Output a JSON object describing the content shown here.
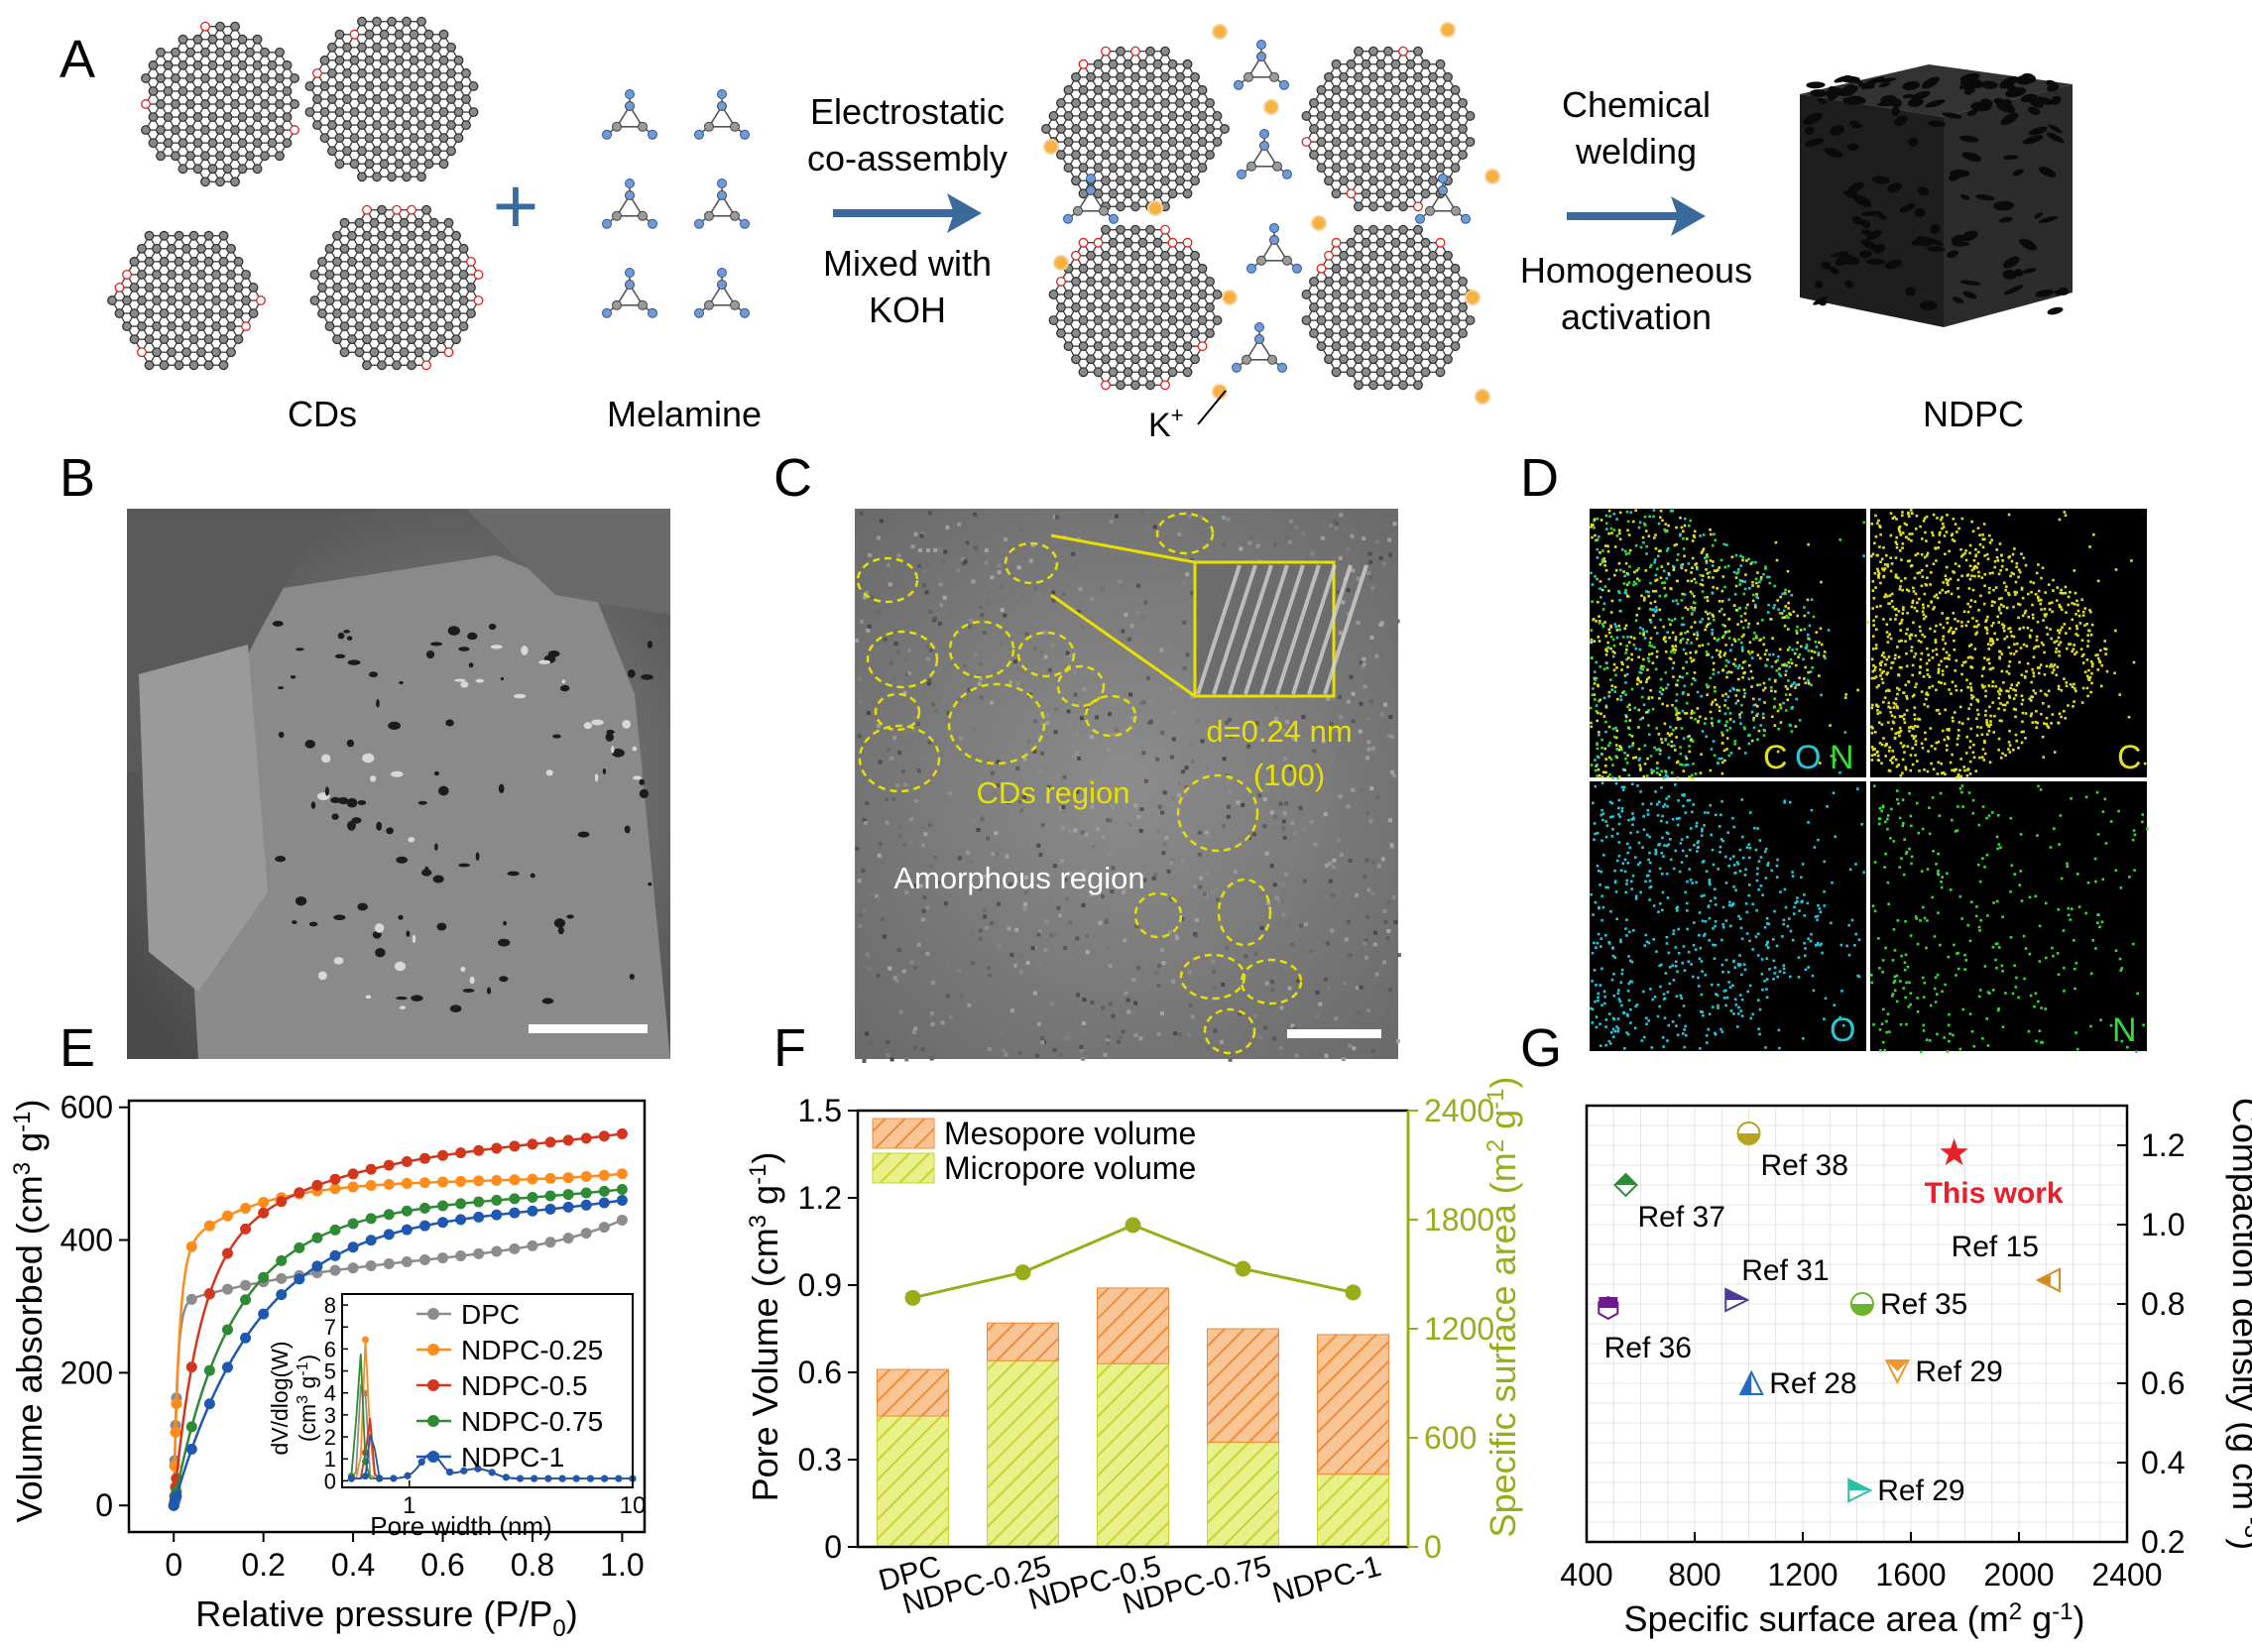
{
  "panel_labels": [
    "A",
    "B",
    "C",
    "D",
    "E",
    "F",
    "G"
  ],
  "schematic": {
    "cds_label": "CDs",
    "melamine_label": "Melamine",
    "plus": "+",
    "step1_top_line1": "Electrostatic",
    "step1_top_line2": "co-assembly",
    "step1_bottom_line1": "Mixed with",
    "step1_bottom_line2": "KOH",
    "k_ion_label": "K",
    "k_ion_sup": "+",
    "step2_top_line1": "Chemical",
    "step2_top_line2": "welding",
    "step2_bottom_line1": "Homogeneous",
    "step2_bottom_line2": "activation",
    "product_label": "NDPC"
  },
  "tem": {
    "d_spacing": "d=0.24 nm",
    "plane": "(100)",
    "cds_region": "CDs region",
    "amorphous_region": "Amorphous region"
  },
  "mapping": {
    "composite_c": "C",
    "composite_o": "O",
    "composite_n": "N",
    "c_label": "C",
    "o_label": "O",
    "n_label": "N"
  },
  "colors": {
    "arrow": "#3a6a9c",
    "dpc": "#8c8c8c",
    "ndpc025": "#ff8c1a",
    "ndpc05": "#d2361c",
    "ndpc075": "#2f8a36",
    "ndpc1": "#1f58b0",
    "meso": "#f6b27a",
    "micro": "#e0ea6e",
    "ssa_line": "#9aac1a",
    "map_yellow": "#e0e020",
    "map_cyan": "#24c8d8",
    "map_green": "#33dd33",
    "this_work": "#e8202a"
  },
  "chart_data": [
    {
      "id": "E",
      "type": "line",
      "title": "",
      "xlabel": "Relative pressure (P/P",
      "xlabel_sub": "0",
      "xlabel_end": ")",
      "ylabel": "Volume absorbed (cm",
      "ylabel_sup": "3",
      "ylabel_end": " g",
      "ylabel_sup2": "-1",
      "ylabel_close": ")",
      "xlim": [
        -0.1,
        1.05
      ],
      "ylim": [
        -40,
        610
      ],
      "xticks": [
        0,
        0.2,
        0.4,
        0.6,
        0.8,
        1.0
      ],
      "xtick_labels": [
        "0",
        "0.2",
        "0.4",
        "0.6",
        "0.8",
        "1.0"
      ],
      "yticks": [
        0,
        200,
        400,
        600
      ],
      "ytick_labels": [
        "0",
        "200",
        "400",
        "600"
      ],
      "series": [
        {
          "name": "DPC",
          "color": "#8c8c8c",
          "params": [
            305,
            90,
            0.008,
            2.2,
            45
          ]
        },
        {
          "name": "NDPC-0.25",
          "color": "#ff8c1a",
          "params": [
            380,
            110,
            0.012,
            6,
            10
          ]
        },
        {
          "name": "NDPC-0.5",
          "color": "#d2361c",
          "params": [
            360,
            200,
            0.055,
            3,
            10
          ]
        },
        {
          "name": "NDPC-0.75",
          "color": "#2f8a36",
          "params": [
            270,
            200,
            0.1,
            4,
            10
          ]
        },
        {
          "name": "NDPC-1",
          "color": "#1f58b0",
          "params": [
            250,
            200,
            0.16,
            4,
            14
          ]
        }
      ],
      "legend": [
        "DPC",
        "NDPC-0.25",
        "NDPC-0.5",
        "NDPC-0.75",
        "NDPC-1"
      ],
      "inset": {
        "xlabel": "Pore width (nm)",
        "ylabel_line1": "dV/dlog(W)",
        "ylabel_line2": "(cm",
        "ylabel_sup": "3",
        "ylabel_line2_end": " g",
        "ylabel_sup2": "-1",
        "ylabel_close": ")",
        "xscale": "log",
        "xlim": [
          0.5,
          10
        ],
        "ylim": [
          -0.3,
          8.5
        ],
        "xticks": [
          1,
          10
        ],
        "xtick_labels": [
          "1",
          "10"
        ],
        "yticks": [
          0,
          1,
          2,
          3,
          4,
          5,
          6,
          7,
          8
        ],
        "ytick_labels": [
          "0",
          "1",
          "2",
          "3",
          "4",
          "5",
          "6",
          "7",
          "8"
        ],
        "peaks": [
          {
            "name": "DPC",
            "peak": 5.8,
            "at": 0.62
          },
          {
            "name": "NDPC-0.25",
            "peak": 6.5,
            "at": 0.64
          },
          {
            "name": "NDPC-0.5",
            "peak": 3.0,
            "at": 0.66
          },
          {
            "name": "NDPC-0.75",
            "peak": 6.0,
            "at": 0.6
          },
          {
            "name": "NDPC-1",
            "peak": 2.6,
            "at": 0.68
          }
        ]
      }
    },
    {
      "id": "F",
      "type": "bar",
      "title": "",
      "categories": [
        "DPC",
        "NDPC-0.25",
        "NDPC-0.5",
        "NDPC-0.75",
        "NDPC-1"
      ],
      "series": [
        {
          "name": "Micropore volume",
          "values": [
            0.45,
            0.64,
            0.63,
            0.36,
            0.25
          ]
        },
        {
          "name": "Mesopore volume",
          "values": [
            0.16,
            0.13,
            0.26,
            0.39,
            0.48
          ]
        },
        {
          "name": "Specific surface area",
          "axis": "right",
          "values": [
            1370,
            1510,
            1770,
            1530,
            1400
          ]
        }
      ],
      "legend": [
        "Mesopore volume",
        "Micropore volume"
      ],
      "ylabel": "Pore Volume (cm",
      "ylabel_sup": "3",
      "ylabel_end": " g",
      "ylabel_sup2": "-1",
      "ylabel_close": ")",
      "y2label": "Specific surface area  (m",
      "y2label_sup": "2",
      "y2label_end": " g",
      "y2label_sup2": "-1",
      "y2label_close": ")",
      "ylim": [
        0,
        1.5
      ],
      "y2lim": [
        0,
        2400
      ],
      "yticks": [
        0,
        0.3,
        0.6,
        0.9,
        1.2,
        1.5
      ],
      "ytick_labels": [
        "0",
        "0.3",
        "0.6",
        "0.9",
        "1.2",
        "1.5"
      ],
      "y2ticks": [
        0,
        600,
        1200,
        1800,
        2400
      ],
      "y2tick_labels": [
        "0",
        "600",
        "1200",
        "1800",
        "2400"
      ]
    },
    {
      "id": "G",
      "type": "scatter",
      "title": "",
      "xlabel": "Specific surface area (m",
      "xlabel_sup": "2",
      "xlabel_end": " g",
      "xlabel_sup2": "-1",
      "xlabel_close": ")",
      "ylabel": "Compaction density (g cm",
      "ylabel_sup": " -3",
      "ylabel_close": ")",
      "xlim": [
        400,
        2400
      ],
      "ylim": [
        0.2,
        1.3
      ],
      "xticks": [
        400,
        800,
        1200,
        1600,
        2000,
        2400
      ],
      "xtick_labels": [
        "400",
        "800",
        "1200",
        "1600",
        "2000",
        "2400"
      ],
      "yticks": [
        0.2,
        0.4,
        0.6,
        0.8,
        1.0,
        1.2
      ],
      "ytick_labels": [
        "0.2",
        "0.4",
        "0.6",
        "0.8",
        "1.0",
        "1.2"
      ],
      "points": [
        {
          "label": "Ref 38",
          "x": 1000,
          "y": 1.23,
          "marker": "circle-half",
          "color": "#b8a41c",
          "anchor": "below-right"
        },
        {
          "label": "This work",
          "x": 1760,
          "y": 1.18,
          "marker": "star",
          "color": "#e8202a",
          "anchor": "below",
          "highlight": true
        },
        {
          "label": "Ref 37",
          "x": 545,
          "y": 1.1,
          "marker": "diamond-half",
          "color": "#2e8b3a",
          "anchor": "below-right"
        },
        {
          "label": "Ref 15",
          "x": 2110,
          "y": 0.86,
          "marker": "triangle-left",
          "color": "#d48a1c",
          "anchor": "above-left"
        },
        {
          "label": "Ref 31",
          "x": 955,
          "y": 0.81,
          "marker": "triangle-right",
          "color": "#4a3a9a",
          "anchor": "above-right"
        },
        {
          "label": "Ref 35",
          "x": 1420,
          "y": 0.8,
          "marker": "circle-half",
          "color": "#6cb42c",
          "anchor": "right"
        },
        {
          "label": "Ref 36",
          "x": 480,
          "y": 0.79,
          "marker": "hexagon-half",
          "color": "#6a1a8a",
          "anchor": "below"
        },
        {
          "label": "Ref 29",
          "x": 1550,
          "y": 0.63,
          "marker": "triangle-down",
          "color": "#f0962c",
          "anchor": "right"
        },
        {
          "label": "Ref 28",
          "x": 1010,
          "y": 0.6,
          "marker": "triangle-up-half",
          "color": "#1f6cc0",
          "anchor": "right"
        },
        {
          "label": "Ref 29",
          "x": 1410,
          "y": 0.33,
          "marker": "triangle-right",
          "color": "#2cc0a0",
          "anchor": "right"
        }
      ]
    }
  ]
}
